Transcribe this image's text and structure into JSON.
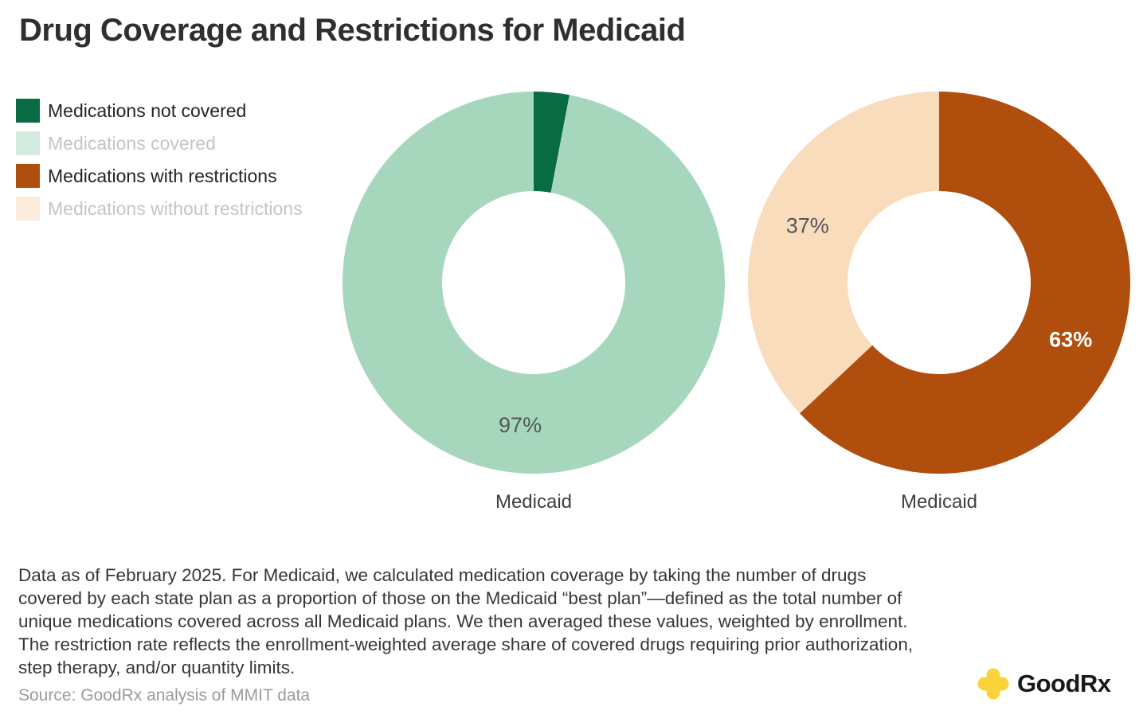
{
  "title": "Drug Coverage and Restrictions for Medicaid",
  "legend": {
    "items": [
      {
        "label": "Medications not covered",
        "swatch_color": "#086b43",
        "muted": false
      },
      {
        "label": "Medications covered",
        "swatch_color": "#d4ecdf",
        "muted": true
      },
      {
        "label": "Medications with restrictions",
        "swatch_color": "#b04e0e",
        "muted": false
      },
      {
        "label": "Medications without restrictions",
        "swatch_color": "#fcecdb",
        "muted": true
      }
    ]
  },
  "chart_data": [
    {
      "type": "pie",
      "variant": "donut",
      "category": "Medicaid",
      "start_angle_deg": 0,
      "direction": "clockwise",
      "slices": [
        {
          "name": "Medications not covered",
          "value_pct": 3,
          "color": "#086b43",
          "label": null
        },
        {
          "name": "Medications covered",
          "value_pct": 97,
          "color": "#a6d7bd",
          "label": "97%",
          "label_color": "#54565a",
          "label_bold": false
        }
      ]
    },
    {
      "type": "pie",
      "variant": "donut",
      "category": "Medicaid",
      "start_angle_deg": 0,
      "direction": "clockwise",
      "slices": [
        {
          "name": "Medications with restrictions",
          "value_pct": 63,
          "color": "#b04e0e",
          "label": "63%",
          "label_color": "#ffffff",
          "label_bold": true
        },
        {
          "name": "Medications without restrictions",
          "value_pct": 37,
          "color": "#f8dcbb",
          "label": "37%",
          "label_color": "#54565a",
          "label_bold": false
        }
      ]
    }
  ],
  "footnote": "Data as of February 2025. For Medicaid, we calculated medication coverage by taking the number of drugs covered by each state plan as a proportion of those on the Medicaid “best plan”—defined as the total number of unique medications covered across all Medicaid plans. We then averaged these values, weighted by enrollment. The restriction rate reflects the enrollment-weighted average share of covered drugs requiring prior authorization, step therapy, and/or quantity limits.",
  "source": "Source: GoodRx analysis of MMIT data",
  "logo": {
    "text": "GoodRx",
    "plus_color": "#fbd338"
  }
}
